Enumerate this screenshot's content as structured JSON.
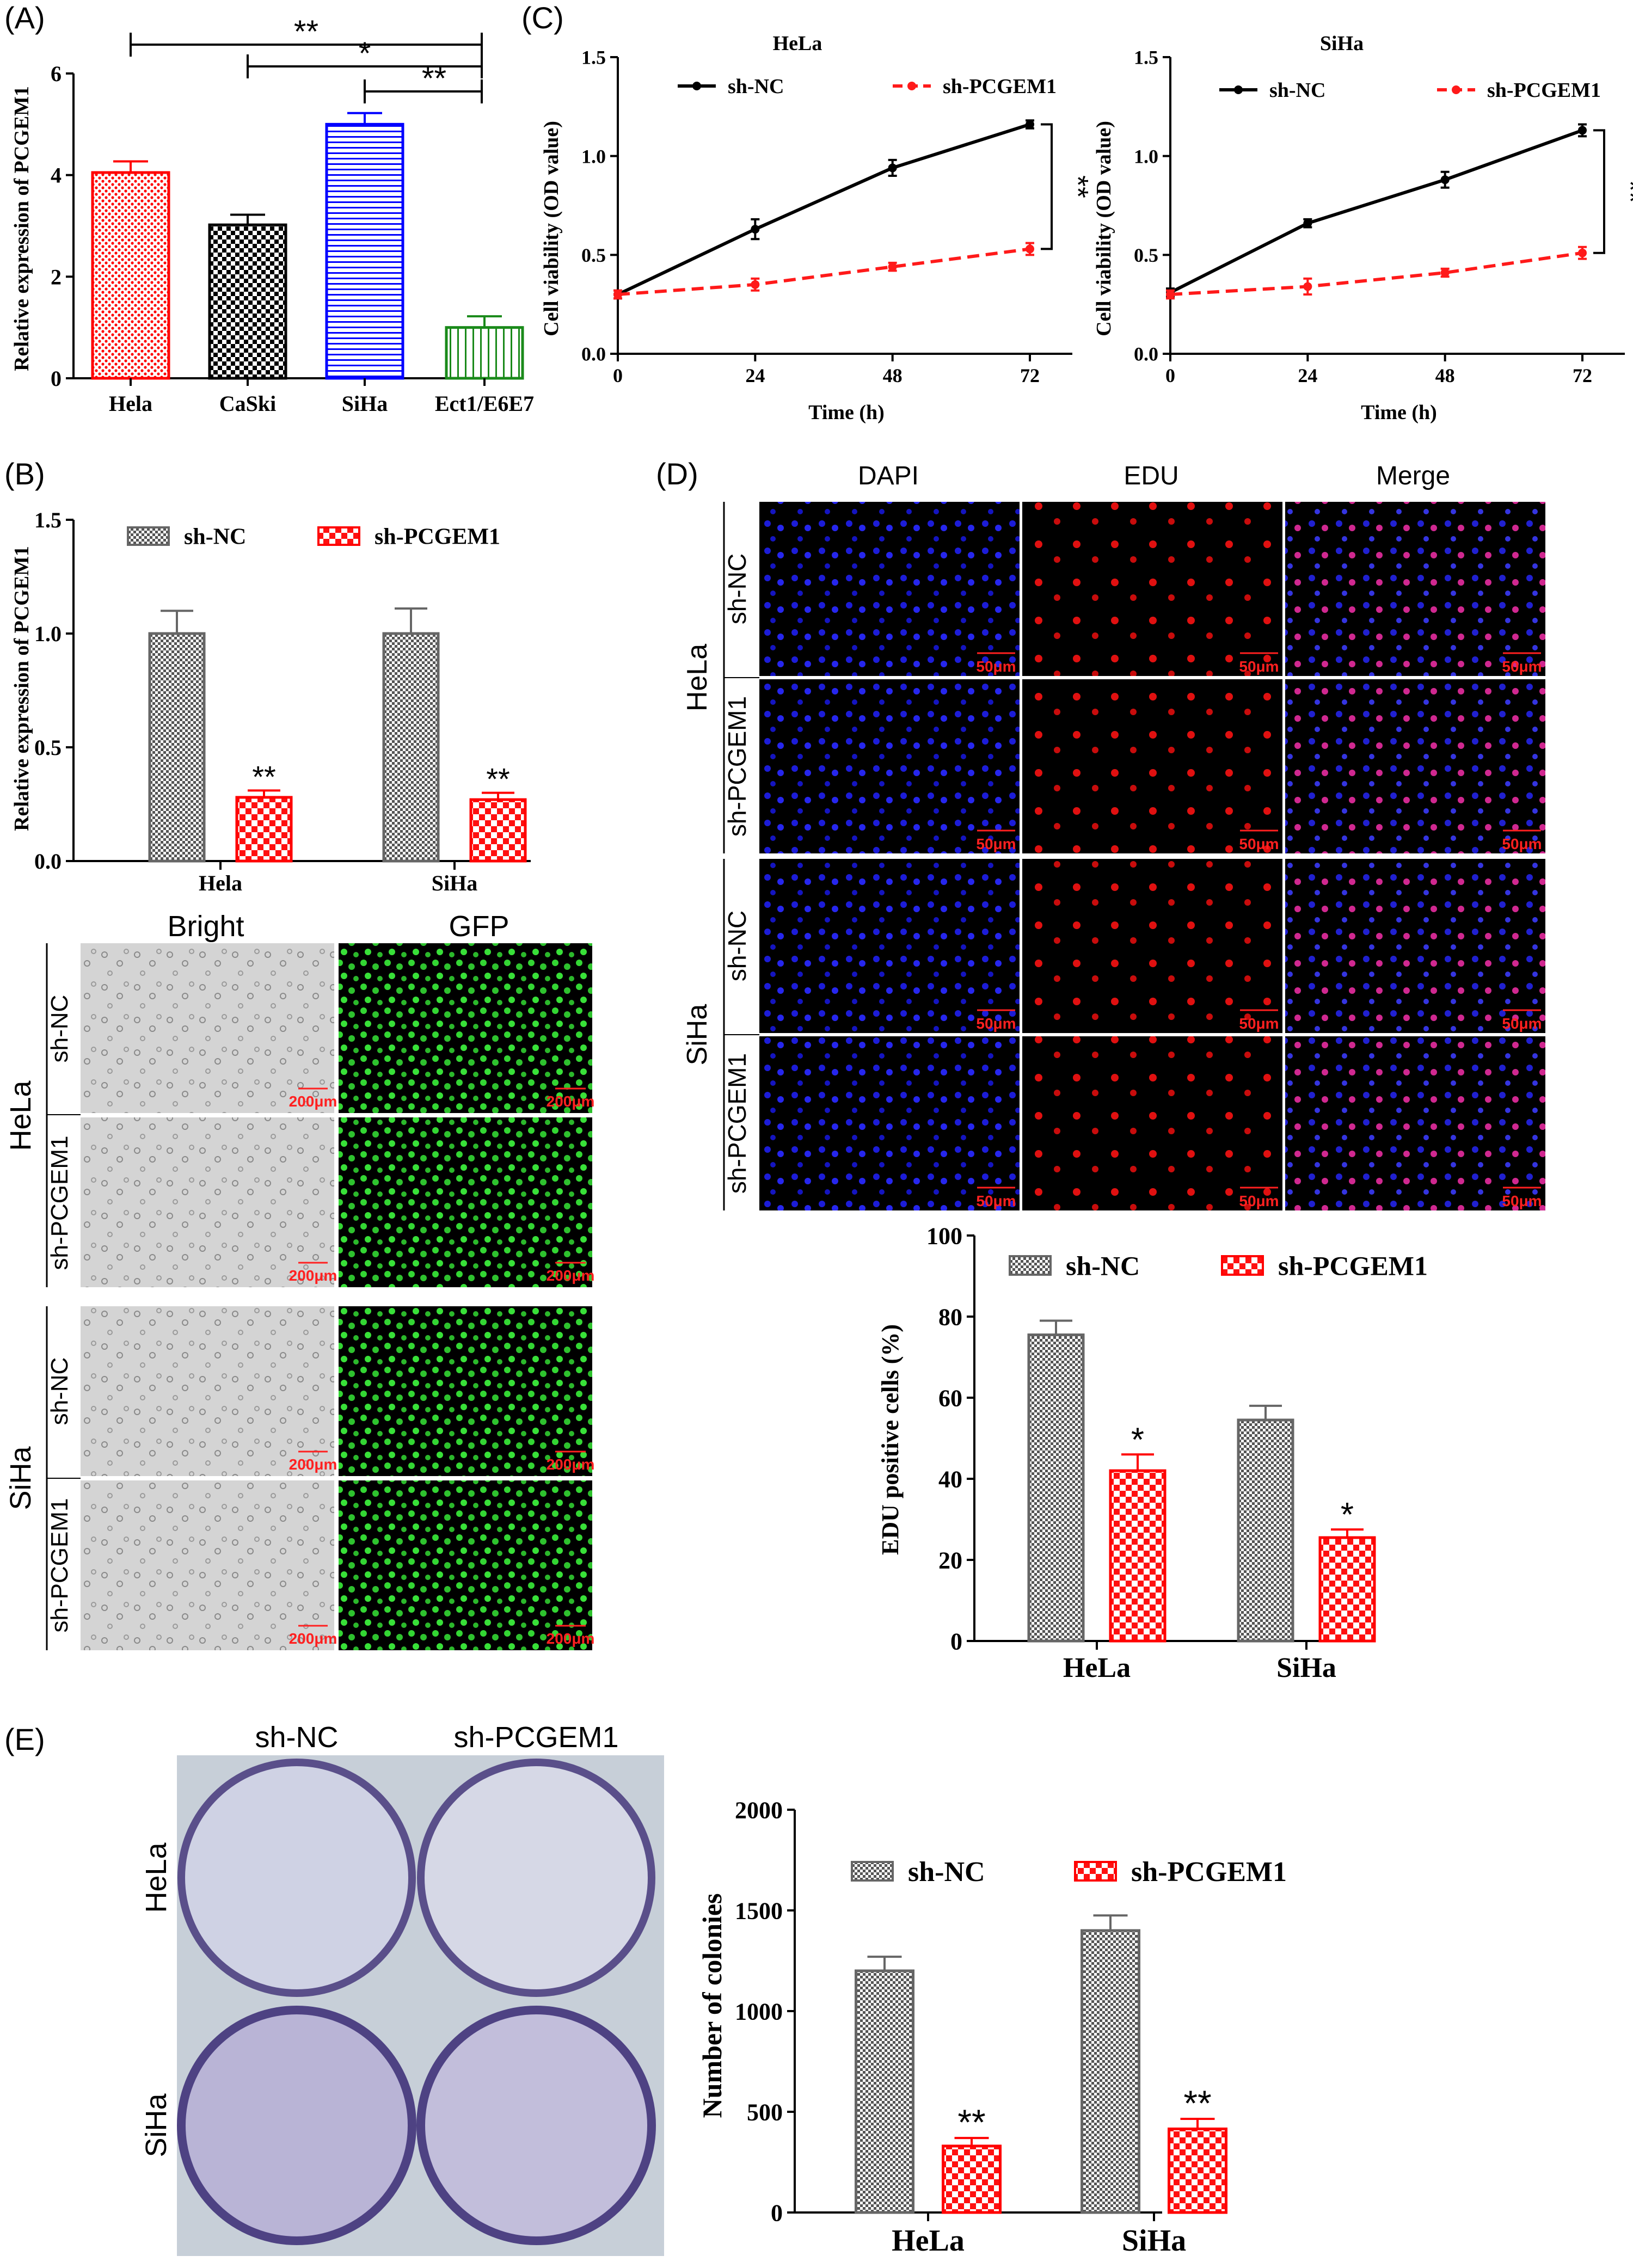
{
  "panel_labels": {
    "a": "(A)",
    "b": "(B)",
    "c": "(C)",
    "d": "(D)",
    "e": "(E)"
  },
  "colors": {
    "red": "#ff0000",
    "black": "#000000",
    "blue": "#0000ff",
    "green": "#1a8a1a",
    "gray": "#666666",
    "scale_red": "#ff2020"
  },
  "chart_data": [
    {
      "id": "A",
      "type": "bar",
      "ylabel": "Relative expression of PCGEM1",
      "categories": [
        "Hela",
        "CaSki",
        "SiHa",
        "Ect1/E6E7"
      ],
      "values": [
        4.05,
        3.02,
        5.0,
        1.0
      ],
      "errors": [
        0.22,
        0.2,
        0.22,
        0.22
      ],
      "bar_colors": [
        "#ff0000",
        "#000000",
        "#0000ff",
        "#1a8a1a"
      ],
      "bar_patterns": [
        "dots",
        "checker",
        "hlines",
        "vlines"
      ],
      "ylim": [
        0,
        6
      ],
      "yticks": [
        "0",
        "2",
        "4",
        "6"
      ],
      "significance": [
        "**",
        "*",
        "**"
      ]
    },
    {
      "id": "B",
      "type": "bar",
      "ylabel": "Relative expression of PCGEM1",
      "categories": [
        "Hela",
        "SiHa"
      ],
      "series": [
        {
          "name": "sh-NC",
          "values": [
            1.0,
            1.0
          ],
          "errors": [
            0.1,
            0.11
          ]
        },
        {
          "name": "sh-PCGEM1",
          "values": [
            0.28,
            0.27
          ],
          "errors": [
            0.03,
            0.03
          ]
        }
      ],
      "ylim": [
        0,
        1.5
      ],
      "yticks": [
        "0.0",
        "0.5",
        "1.0",
        "1.5"
      ],
      "significance": [
        "**",
        "**"
      ]
    },
    {
      "id": "C-HeLa",
      "type": "line",
      "title": "HeLa",
      "xlabel": "Time (h)",
      "ylabel": "Cell viability (OD value)",
      "x": [
        0,
        24,
        48,
        72
      ],
      "series": [
        {
          "name": "sh-NC",
          "values": [
            0.3,
            0.63,
            0.94,
            1.16
          ],
          "errors": [
            0.02,
            0.05,
            0.04,
            0.02
          ]
        },
        {
          "name": "sh-PCGEM1",
          "values": [
            0.3,
            0.35,
            0.44,
            0.53
          ],
          "errors": [
            0.02,
            0.03,
            0.02,
            0.03
          ]
        }
      ],
      "ylim": [
        0,
        1.5
      ],
      "yticks": [
        "0.0",
        "0.5",
        "1.0",
        "1.5"
      ],
      "xticks": [
        "0",
        "24",
        "48",
        "72"
      ],
      "significance": "**"
    },
    {
      "id": "C-SiHa",
      "type": "line",
      "title": "SiHa",
      "xlabel": "Time (h)",
      "ylabel": "Cell viability (OD value)",
      "x": [
        0,
        24,
        48,
        72
      ],
      "series": [
        {
          "name": "sh-NC",
          "values": [
            0.31,
            0.66,
            0.88,
            1.13
          ],
          "errors": [
            0.02,
            0.02,
            0.04,
            0.03
          ]
        },
        {
          "name": "sh-PCGEM1",
          "values": [
            0.3,
            0.34,
            0.41,
            0.51
          ],
          "errors": [
            0.02,
            0.04,
            0.02,
            0.03
          ]
        }
      ],
      "ylim": [
        0,
        1.5
      ],
      "yticks": [
        "0.0",
        "0.5",
        "1.0",
        "1.5"
      ],
      "xticks": [
        "0",
        "24",
        "48",
        "72"
      ],
      "significance": "**"
    },
    {
      "id": "D",
      "type": "bar",
      "ylabel": "EDU positive cells (%)",
      "categories": [
        "HeLa",
        "SiHa"
      ],
      "series": [
        {
          "name": "sh-NC",
          "values": [
            75.5,
            54.5
          ],
          "errors": [
            3.5,
            3.5
          ]
        },
        {
          "name": "sh-PCGEM1",
          "values": [
            42.0,
            25.5
          ],
          "errors": [
            4.0,
            2.0
          ]
        }
      ],
      "ylim": [
        0,
        100
      ],
      "yticks": [
        "0",
        "20",
        "40",
        "60",
        "80",
        "100"
      ],
      "significance": [
        "*",
        "*"
      ]
    },
    {
      "id": "E",
      "type": "bar",
      "ylabel": "Number of colonies",
      "categories": [
        "HeLa",
        "SiHa"
      ],
      "series": [
        {
          "name": "sh-NC",
          "values": [
            1200,
            1400
          ],
          "errors": [
            70,
            75
          ]
        },
        {
          "name": "sh-PCGEM1",
          "values": [
            330,
            415
          ],
          "errors": [
            40,
            50
          ]
        }
      ],
      "ylim": [
        0,
        2000
      ],
      "yticks": [
        "0",
        "500",
        "1000",
        "1500",
        "2000"
      ],
      "significance": [
        "**",
        "**"
      ]
    }
  ],
  "micro_b": {
    "columns": [
      "Bright",
      "GFP"
    ],
    "cell_lines": [
      "HeLa",
      "SiHa"
    ],
    "rows": [
      "sh-NC",
      "sh-PCGEM1"
    ],
    "scale": "200μm"
  },
  "micro_d": {
    "columns": [
      "DAPI",
      "EDU",
      "Merge"
    ],
    "cell_lines": [
      "HeLa",
      "SiHa"
    ],
    "rows": [
      "sh-NC",
      "sh-PCGEM1"
    ],
    "scale": "50μm"
  },
  "plates_e": {
    "columns": [
      "sh-NC",
      "sh-PCGEM1"
    ],
    "rows": [
      "HeLa",
      "SiHa"
    ]
  }
}
